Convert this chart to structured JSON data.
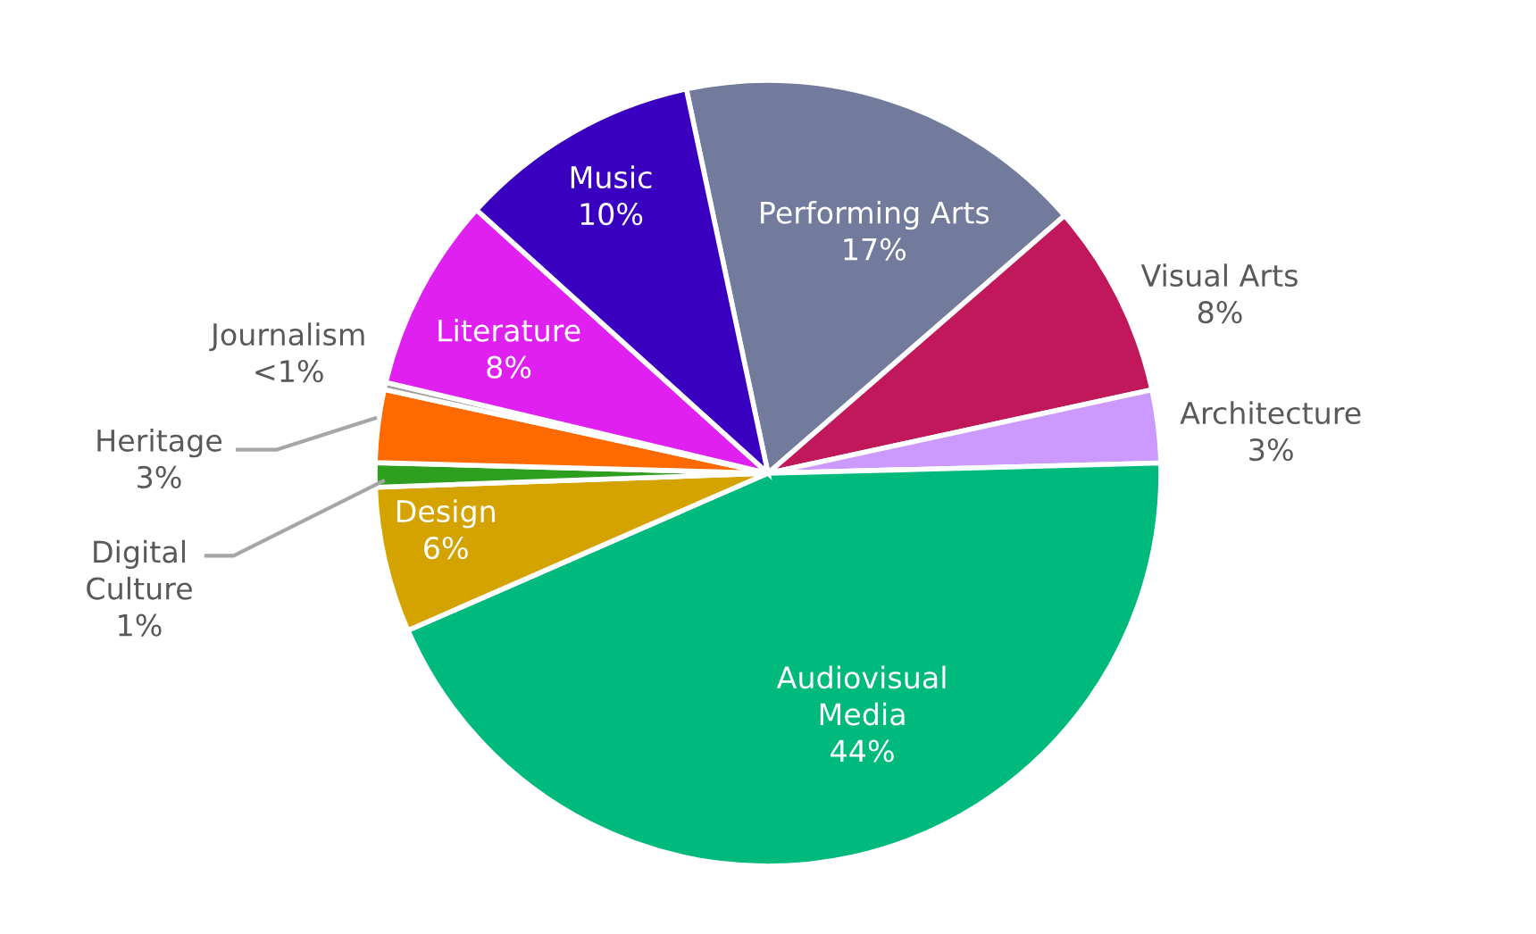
{
  "chart_data": {
    "type": "pie",
    "categories": [
      "Performing Arts",
      "Visual Arts",
      "Architecture",
      "Audiovisual Media",
      "Design",
      "Digital Culture",
      "Heritage",
      "Journalism",
      "Literature",
      "Music"
    ],
    "values": [
      17,
      8,
      3,
      44,
      6,
      1,
      3,
      0.3,
      8,
      10
    ],
    "value_labels": [
      "17%",
      "8%",
      "3%",
      "44%",
      "6%",
      "1%",
      "3%",
      "<1%",
      "8%",
      "10%"
    ],
    "colors": [
      "#737b9c",
      "#c0185a",
      "#cc99ff",
      "#00b97d",
      "#d4a300",
      "#2e9e1e",
      "#ff6a00",
      "#a0a0a0",
      "#e020f0",
      "#3a00c0"
    ]
  }
}
